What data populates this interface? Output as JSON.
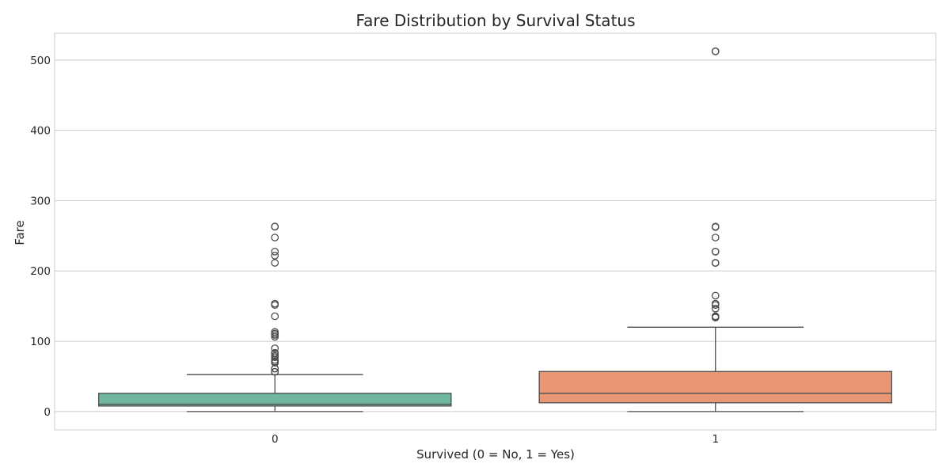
{
  "chart_data": {
    "type": "box",
    "title": "Fare Distribution by Survival Status",
    "xlabel": "Survived (0 = No, 1 = Yes)",
    "ylabel": "Fare",
    "categories": [
      "0",
      "1"
    ],
    "ylim": [
      -26,
      538
    ],
    "yticks": [
      0,
      100,
      200,
      300,
      400,
      500
    ],
    "grid": true,
    "boxes": [
      {
        "category": "0",
        "color": "#72b7a1",
        "min": 0,
        "q1": 7.9,
        "median": 10.5,
        "q3": 26,
        "max": 52.6,
        "fliers": [
          263,
          263,
          247.5,
          227.5,
          221.8,
          211.5,
          153.5,
          151.6,
          135.6,
          113.3,
          110.9,
          108.9,
          106.4,
          90,
          83.5,
          82.2,
          79.2,
          77.3,
          73.5,
          71.3,
          69.6,
          69.6,
          61.2,
          61.2,
          56.5,
          56.5
        ]
      },
      {
        "category": "1",
        "color": "#e99675",
        "min": 0,
        "q1": 12.5,
        "median": 26,
        "q3": 57,
        "max": 120,
        "fliers": [
          512.3,
          512.3,
          263,
          262.4,
          247.5,
          227.5,
          227.5,
          211.5,
          211.3,
          164.9,
          153.5,
          151.6,
          146.5,
          135.6,
          134.5,
          133.7
        ]
      }
    ]
  }
}
